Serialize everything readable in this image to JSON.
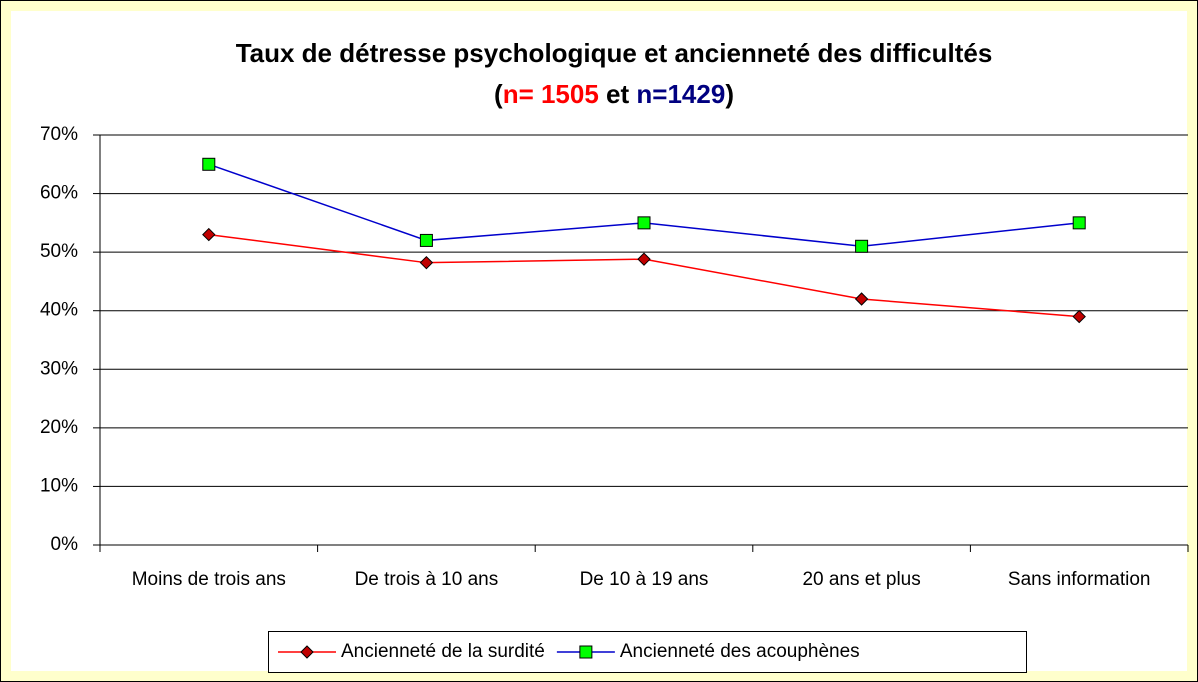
{
  "chart_data": {
    "type": "line",
    "title": "Taux de détresse psychologique et ancienneté des difficultés",
    "subtitle_parts": [
      {
        "text": "(",
        "color": "#000000"
      },
      {
        "text": "n= 1505",
        "color": "#ff0000"
      },
      {
        "text": " et ",
        "color": "#000000"
      },
      {
        "text": "n=1429",
        "color": "#000080"
      },
      {
        "text": ")",
        "color": "#000000"
      }
    ],
    "categories": [
      "Moins de trois ans",
      "De trois à 10 ans",
      "De 10 à 19 ans",
      "20 ans et plus",
      "Sans information"
    ],
    "series": [
      {
        "name": "Ancienneté de la surdité",
        "color": "#ff0000",
        "marker": "diamond",
        "marker_color": "#c00000",
        "values": [
          53,
          48.2,
          48.8,
          42,
          39
        ]
      },
      {
        "name": "Ancienneté des acouphènes",
        "color": "#0000cc",
        "marker": "square",
        "marker_color": "#00ff00",
        "values": [
          65,
          52,
          55,
          51,
          55
        ]
      }
    ],
    "ylim": [
      0,
      70
    ],
    "yticks": [
      {
        "value": 0,
        "label": "0%"
      },
      {
        "value": 10,
        "label": "10%"
      },
      {
        "value": 20,
        "label": "20%"
      },
      {
        "value": 30,
        "label": "30%"
      },
      {
        "value": 40,
        "label": "40%"
      },
      {
        "value": 50,
        "label": "50%"
      },
      {
        "value": 60,
        "label": "60%"
      },
      {
        "value": 70,
        "label": "70%"
      }
    ],
    "grid": true,
    "legend": "bottom"
  }
}
